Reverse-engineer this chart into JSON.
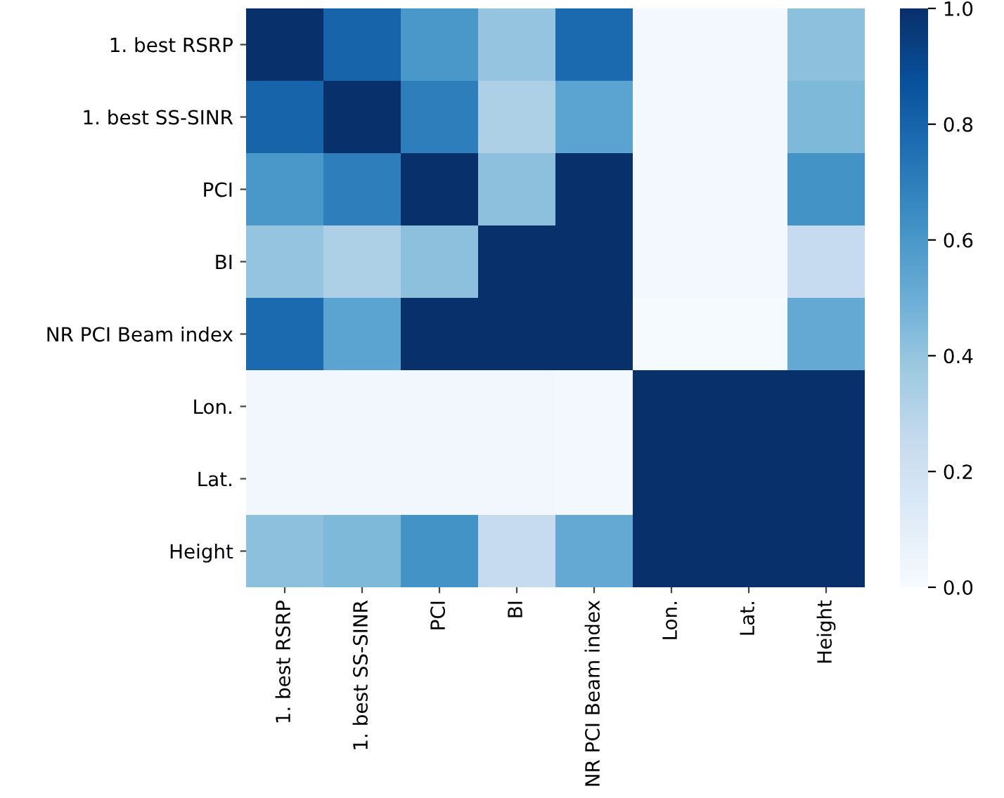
{
  "chart_data": {
    "type": "heatmap",
    "categories": [
      "1. best RSRP",
      "1. best SS-SINR",
      "PCI",
      "BI",
      "NR PCI Beam index",
      "Lon.",
      "Lat.",
      "Height"
    ],
    "y_categories": [
      "1. best RSRP",
      "1. best SS-SINR",
      "PCI",
      "BI",
      "NR PCI Beam index",
      "Lon.",
      "Lat.",
      "Height"
    ],
    "cells": [
      [
        1.0,
        0.8,
        0.6,
        0.4,
        0.78,
        0.02,
        0.02,
        0.42
      ],
      [
        0.8,
        1.0,
        0.7,
        0.33,
        0.55,
        0.02,
        0.02,
        0.45
      ],
      [
        0.6,
        0.7,
        1.0,
        0.42,
        1.0,
        0.02,
        0.02,
        0.62
      ],
      [
        0.4,
        0.33,
        0.42,
        1.0,
        1.0,
        0.02,
        0.02,
        0.25
      ],
      [
        0.78,
        0.55,
        1.0,
        1.0,
        1.0,
        0.01,
        0.01,
        0.52
      ],
      [
        0.03,
        0.03,
        0.03,
        0.03,
        0.02,
        1.0,
        1.0,
        1.0
      ],
      [
        0.03,
        0.03,
        0.03,
        0.03,
        0.02,
        1.0,
        1.0,
        1.0
      ],
      [
        0.42,
        0.45,
        0.62,
        0.25,
        0.52,
        1.0,
        1.0,
        1.0
      ]
    ],
    "clim": [
      0.0,
      1.0
    ],
    "cticks": [
      {
        "value": 0.0,
        "label": "0.0"
      },
      {
        "value": 0.2,
        "label": "0.2"
      },
      {
        "value": 0.4,
        "label": "0.4"
      },
      {
        "value": 0.6,
        "label": "0.6"
      },
      {
        "value": 0.8,
        "label": "0.8"
      },
      {
        "value": 1.0,
        "label": "1.0"
      }
    ]
  }
}
